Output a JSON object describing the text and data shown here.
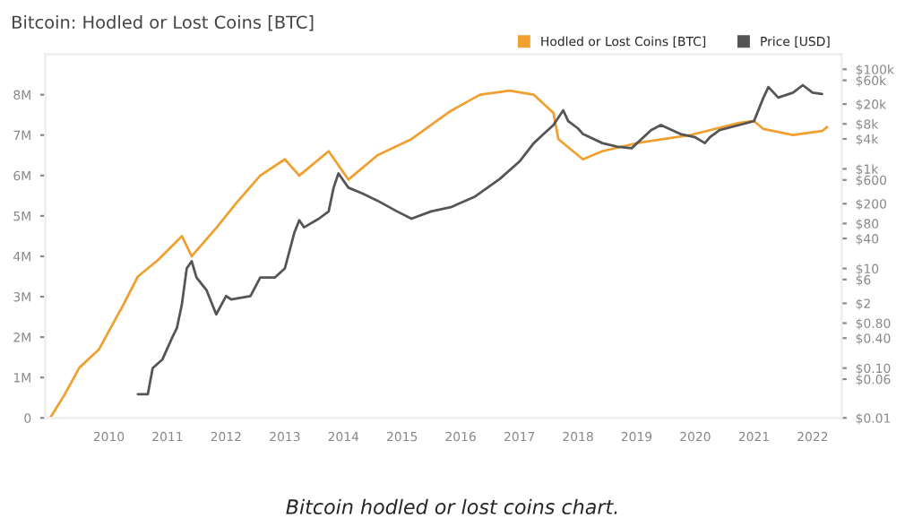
{
  "chart_data": {
    "type": "line",
    "title": "Bitcoin: Hodled or Lost Coins [BTC]",
    "annotations": [
      "Bitcoin hodled or lost coins chart."
    ],
    "series": [
      {
        "name": "Hodled or Lost Coins [BTC]",
        "color": "#f0a030",
        "x": [
          "2009-01",
          "2009-04",
          "2009-07",
          "2009-11",
          "2010-04",
          "2010-07",
          "2010-11",
          "2011-04",
          "2011-06",
          "2011-11",
          "2012-03",
          "2012-08",
          "2013-01",
          "2013-04",
          "2013-10",
          "2014-02",
          "2014-08",
          "2015-03",
          "2015-11",
          "2016-05",
          "2016-11",
          "2017-04",
          "2017-08",
          "2017-09",
          "2017-12",
          "2018-02",
          "2018-06",
          "2019-01",
          "2019-12",
          "2020-10",
          "2021-01",
          "2021-03",
          "2021-09",
          "2022-03",
          "2022-04"
        ],
        "values": [
          0,
          580000,
          1240000,
          1700000,
          2800000,
          3500000,
          3900000,
          4500000,
          4000000,
          4700000,
          5300000,
          6000000,
          6400000,
          6000000,
          6600000,
          5900000,
          6500000,
          6900000,
          7600000,
          8000000,
          8100000,
          8000000,
          7550000,
          6900000,
          6600000,
          6400000,
          6600000,
          6800000,
          7000000,
          7300000,
          7350000,
          7150000,
          7000000,
          7100000,
          7200000
        ]
      },
      {
        "name": "Price [USD]",
        "color": "#555555",
        "axis": "y2",
        "x": [
          "2010-07",
          "2010-09",
          "2010-10",
          "2010-12",
          "2011-02",
          "2011-03",
          "2011-04",
          "2011-05",
          "2011-06",
          "2011-07",
          "2011-09",
          "2011-11",
          "2012-01",
          "2012-02",
          "2012-06",
          "2012-08",
          "2012-11",
          "2013-01",
          "2013-03",
          "2013-04",
          "2013-05",
          "2013-08",
          "2013-10",
          "2013-11",
          "2013-12",
          "2014-02",
          "2014-05",
          "2014-08",
          "2014-12",
          "2015-03",
          "2015-07",
          "2015-11",
          "2016-04",
          "2016-09",
          "2017-01",
          "2017-04",
          "2017-06",
          "2017-08",
          "2017-10",
          "2017-11",
          "2018-01",
          "2018-02",
          "2018-06",
          "2018-09",
          "2018-12",
          "2019-04",
          "2019-06",
          "2019-10",
          "2020-01",
          "2020-03",
          "2020-04",
          "2020-06",
          "2020-10",
          "2021-01",
          "2021-03",
          "2021-04",
          "2021-06",
          "2021-09",
          "2021-11",
          "2022-01",
          "2022-03"
        ],
        "values": [
          0.03,
          0.03,
          0.1,
          0.15,
          0.42,
          0.64,
          1.9,
          10,
          14,
          6.6,
          3.7,
          1.2,
          2.8,
          2.4,
          2.8,
          6.6,
          6.6,
          10,
          52,
          93,
          67,
          100,
          140,
          420,
          810,
          420,
          320,
          230,
          140,
          100,
          140,
          170,
          280,
          630,
          1400,
          3300,
          5000,
          7600,
          15000,
          9100,
          6500,
          5000,
          3300,
          2800,
          2600,
          6000,
          7600,
          5000,
          4300,
          3300,
          4300,
          6000,
          7600,
          9100,
          27000,
          44000,
          27000,
          34000,
          48000,
          34000,
          32000
        ]
      }
    ],
    "xlim": [
      "2008-12",
      "2022-07"
    ],
    "xticks": [
      "2010",
      "2011",
      "2012",
      "2013",
      "2014",
      "2015",
      "2016",
      "2017",
      "2018",
      "2019",
      "2020",
      "2021",
      "2022"
    ],
    "ylim": [
      0,
      9000000
    ],
    "yticks": [
      {
        "value": 0,
        "label": "0"
      },
      {
        "value": 1000000,
        "label": "1M"
      },
      {
        "value": 2000000,
        "label": "2M"
      },
      {
        "value": 3000000,
        "label": "3M"
      },
      {
        "value": 4000000,
        "label": "4M"
      },
      {
        "value": 5000000,
        "label": "5M"
      },
      {
        "value": 6000000,
        "label": "6M"
      },
      {
        "value": 7000000,
        "label": "7M"
      },
      {
        "value": 8000000,
        "label": "8M"
      }
    ],
    "log": "y2",
    "y2lim": [
      0.01,
      200000
    ],
    "y2ticks": [
      {
        "value": 0.01,
        "label": "$0.01"
      },
      {
        "value": 0.06,
        "label": "$0.06"
      },
      {
        "value": 0.1,
        "label": "$0.10"
      },
      {
        "value": 0.4,
        "label": "$0.40"
      },
      {
        "value": 0.8,
        "label": "$0.80"
      },
      {
        "value": 2,
        "label": "$2"
      },
      {
        "value": 6,
        "label": "$6"
      },
      {
        "value": 10,
        "label": "$10"
      },
      {
        "value": 40,
        "label": "$40"
      },
      {
        "value": 80,
        "label": "$80"
      },
      {
        "value": 200,
        "label": "$200"
      },
      {
        "value": 600,
        "label": "$600"
      },
      {
        "value": 1000,
        "label": "$1k"
      },
      {
        "value": 4000,
        "label": "$4k"
      },
      {
        "value": 8000,
        "label": "$8k"
      },
      {
        "value": 20000,
        "label": "$20k"
      },
      {
        "value": 60000,
        "label": "$60k"
      },
      {
        "value": 100000,
        "label": "$100k"
      }
    ],
    "legend": "top right",
    "marker": "none",
    "line_style": "solid",
    "grid": false
  }
}
